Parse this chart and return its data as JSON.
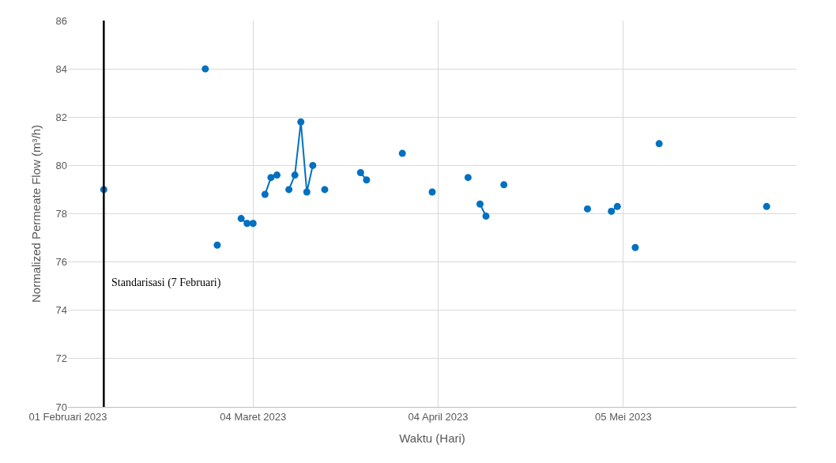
{
  "chart_data": {
    "type": "line",
    "xlabel": "Waktu (Hari)",
    "ylabel": "Normalized Permeate Flow (m³/h)",
    "x": [
      "2023-02-07",
      "2023-02-08",
      "2023-02-24",
      "2023-02-25",
      "2023-02-26",
      "2023-02-27",
      "2023-03-02",
      "2023-03-03",
      "2023-03-04",
      "2023-03-05",
      "2023-03-06",
      "2023-03-07",
      "2023-03-08",
      "2023-03-09",
      "2023-03-10",
      "2023-03-11",
      "2023-03-12",
      "2023-03-13",
      "2023-03-14",
      "2023-03-15",
      "2023-03-16",
      "2023-03-17",
      "2023-03-22",
      "2023-03-23",
      "2023-03-24",
      "2023-03-29",
      "2023-03-30",
      "2023-04-03",
      "2023-04-04",
      "2023-04-09",
      "2023-04-10",
      "2023-04-11",
      "2023-04-12",
      "2023-04-13",
      "2023-04-15",
      "2023-04-16",
      "2023-04-29",
      "2023-04-30",
      "2023-05-03",
      "2023-05-04",
      "2023-05-05",
      "2023-05-07",
      "2023-05-08",
      "2023-05-11",
      "2023-05-12",
      "2023-05-29"
    ],
    "series": [
      {
        "color": "#0070c0",
        "values": [
          79.0,
          null,
          84.0,
          null,
          76.7,
          null,
          77.8,
          77.6,
          77.6,
          null,
          78.8,
          79.5,
          79.6,
          null,
          79.0,
          79.6,
          81.8,
          78.9,
          80.0,
          null,
          79.0,
          null,
          79.7,
          79.4,
          null,
          80.5,
          null,
          78.9,
          null,
          79.5,
          null,
          78.4,
          77.9,
          null,
          79.2,
          null,
          78.2,
          null,
          78.1,
          78.3,
          null,
          76.6,
          null,
          80.9,
          null,
          78.3
        ]
      }
    ],
    "xlim": [
      "2023-02-01",
      "2023-06-03"
    ],
    "xticks": [
      {
        "value": "2023-02-01",
        "label": "01 Februari 2023"
      },
      {
        "value": "2023-03-04",
        "label": "04 Maret 2023"
      },
      {
        "value": "2023-04-04",
        "label": "04 April 2023"
      },
      {
        "value": "2023-05-05",
        "label": "05 Mei 2023"
      }
    ],
    "ylim": [
      70,
      86
    ],
    "yticks": [
      70,
      72,
      74,
      76,
      78,
      80,
      82,
      84,
      86
    ],
    "grid": true,
    "marker": "circle",
    "line_style": "solid",
    "ref_lines": [
      {
        "axis": "x",
        "value": "2023-02-07",
        "label": "Standarisasi (7 Februari)",
        "color": "#000000"
      }
    ]
  }
}
